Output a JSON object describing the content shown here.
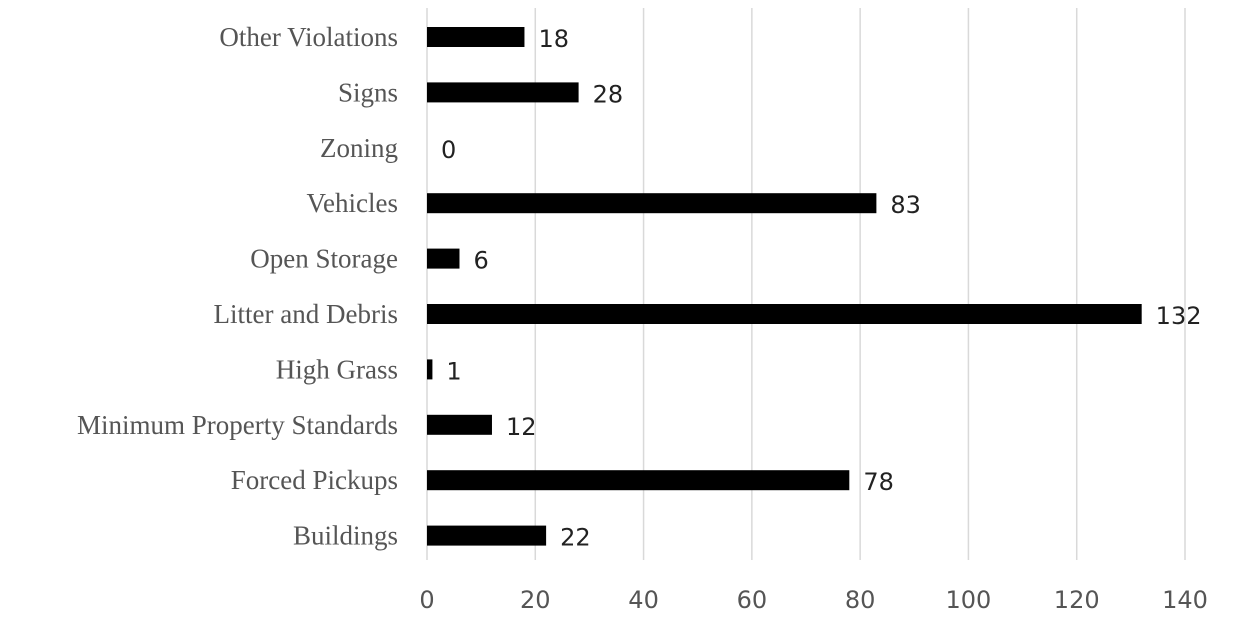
{
  "chart_data": {
    "type": "bar",
    "orientation": "horizontal",
    "categories": [
      "Other Violations",
      "Signs",
      "Zoning",
      "Vehicles",
      "Open Storage",
      "Litter and Debris",
      "High Grass",
      "Minimum Property Standards",
      "Forced Pickups",
      "Buildings"
    ],
    "values": [
      18,
      28,
      0,
      83,
      6,
      132,
      1,
      12,
      78,
      22
    ],
    "xlim": [
      0,
      140
    ],
    "xticks": [
      0,
      20,
      40,
      60,
      80,
      100,
      120,
      140
    ],
    "data_labels": true,
    "grid": "vertical",
    "bar_color": "#000000",
    "title": "",
    "xlabel": "",
    "ylabel": ""
  }
}
